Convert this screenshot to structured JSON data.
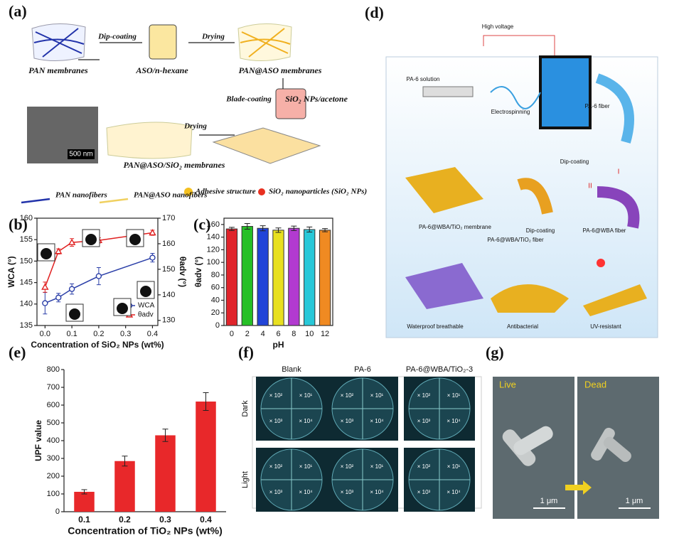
{
  "panel_labels": [
    "(a)",
    "(b)",
    "(c)",
    "(d)",
    "(e)",
    "(f)",
    "(g)"
  ],
  "panel_a": {
    "steps": [
      "PAN membranes",
      "ASO/n-hexane",
      "PAN@ASO membranes",
      "SiO₂ NPs/acetone",
      "PAN@ASO/SiO₂ membranes"
    ],
    "arrows": [
      "Dip-coating",
      "Drying",
      "Blade-coating",
      "Drying"
    ],
    "scale": "500 nm",
    "legend": [
      "PAN nanofibers",
      "PAN@ASO nanofibers",
      "Adhesive structure",
      "SiO₂ nanoparticles (SiO₂ NPs)"
    ]
  },
  "panel_d": {
    "labels": [
      "High voltage",
      "PA-6 solution",
      "Electrospinning",
      "PA-6 fiber",
      "Dip-coating",
      "I",
      "II",
      "Dip-coating",
      "PA-6@WBA fiber",
      "PA-6@WBA/TiO₂ fiber",
      "PA-6@WBA/TiO₂ membrane",
      "Waterproof breathable",
      "Antibacterial",
      "UV-resistant"
    ]
  },
  "panel_f": {
    "columns": [
      "Blank",
      "PA-6",
      "PA-6@WBA/TiO₂-3"
    ],
    "rows": [
      "Dark",
      "Light"
    ],
    "dilutions": [
      "× 10²",
      "× 10¹",
      "× 10³",
      "× 10⁴"
    ]
  },
  "panel_g": {
    "labels": [
      "Live",
      "Dead"
    ],
    "scale": "1 μm"
  },
  "chart_data": [
    {
      "type": "line",
      "xlabel": "Concentration of SiO₂ NPs (wt%)",
      "ylabel": "WCA (°)",
      "y2label": "θadv (°)",
      "x": [
        0,
        0.05,
        0.1,
        0.2,
        0.4
      ],
      "xlim": [
        -0.03,
        0.42
      ],
      "xticks": [
        {
          "value": 0,
          "label": "0.0"
        },
        0.1,
        0.2,
        0.3,
        0.4
      ],
      "ylim": [
        135,
        160
      ],
      "yticks": [
        135,
        140,
        145,
        150,
        155,
        160
      ],
      "y2lim": [
        128,
        170
      ],
      "y2ticks": [
        130,
        140,
        150,
        160,
        170
      ],
      "series": [
        {
          "name": "WCA",
          "color": "#2b3fa8",
          "values": [
            140.2,
            141.5,
            143.5,
            146.5,
            150.8
          ],
          "errors": [
            2.5,
            1,
            1.2,
            2,
            1
          ]
        },
        {
          "name": "θadv",
          "color": "#e02020",
          "axis": "y2",
          "values": [
            143,
            157,
            160.5,
            161.3,
            164.3
          ],
          "errors": [
            2,
            1,
            1.5,
            1,
            1
          ]
        }
      ],
      "legend": "lower right",
      "frame": true
    },
    {
      "type": "bar",
      "xlabel": "pH",
      "ylabel": "θadv (°)",
      "categories": [
        "0",
        "2",
        "4",
        "6",
        "8",
        "10",
        "12"
      ],
      "values": [
        153,
        157,
        154,
        151,
        154,
        152,
        151
      ],
      "errors": [
        2.5,
        4.5,
        4,
        3.5,
        3.5,
        4,
        2.5
      ],
      "colors": [
        "#e0242b",
        "#26c026",
        "#2244d8",
        "#e8e020",
        "#b23ad0",
        "#28c8d8",
        "#f08a22"
      ],
      "ylim": [
        0,
        170
      ],
      "yticks": [
        0,
        20,
        40,
        60,
        80,
        100,
        120,
        140,
        160
      ],
      "frame": true
    },
    {
      "type": "bar",
      "xlabel": "Concentration of TiO₂ NPs (wt%)",
      "ylabel": "UPF value",
      "categories": [
        "0.1",
        "0.2",
        "0.3",
        "0.4"
      ],
      "values": [
        112,
        285,
        430,
        620
      ],
      "errors": [
        12,
        28,
        35,
        50
      ],
      "color": "#e8282a",
      "ylim": [
        0,
        800
      ],
      "yticks": [
        0,
        100,
        200,
        300,
        400,
        500,
        600,
        700,
        800
      ],
      "frame": false
    }
  ]
}
